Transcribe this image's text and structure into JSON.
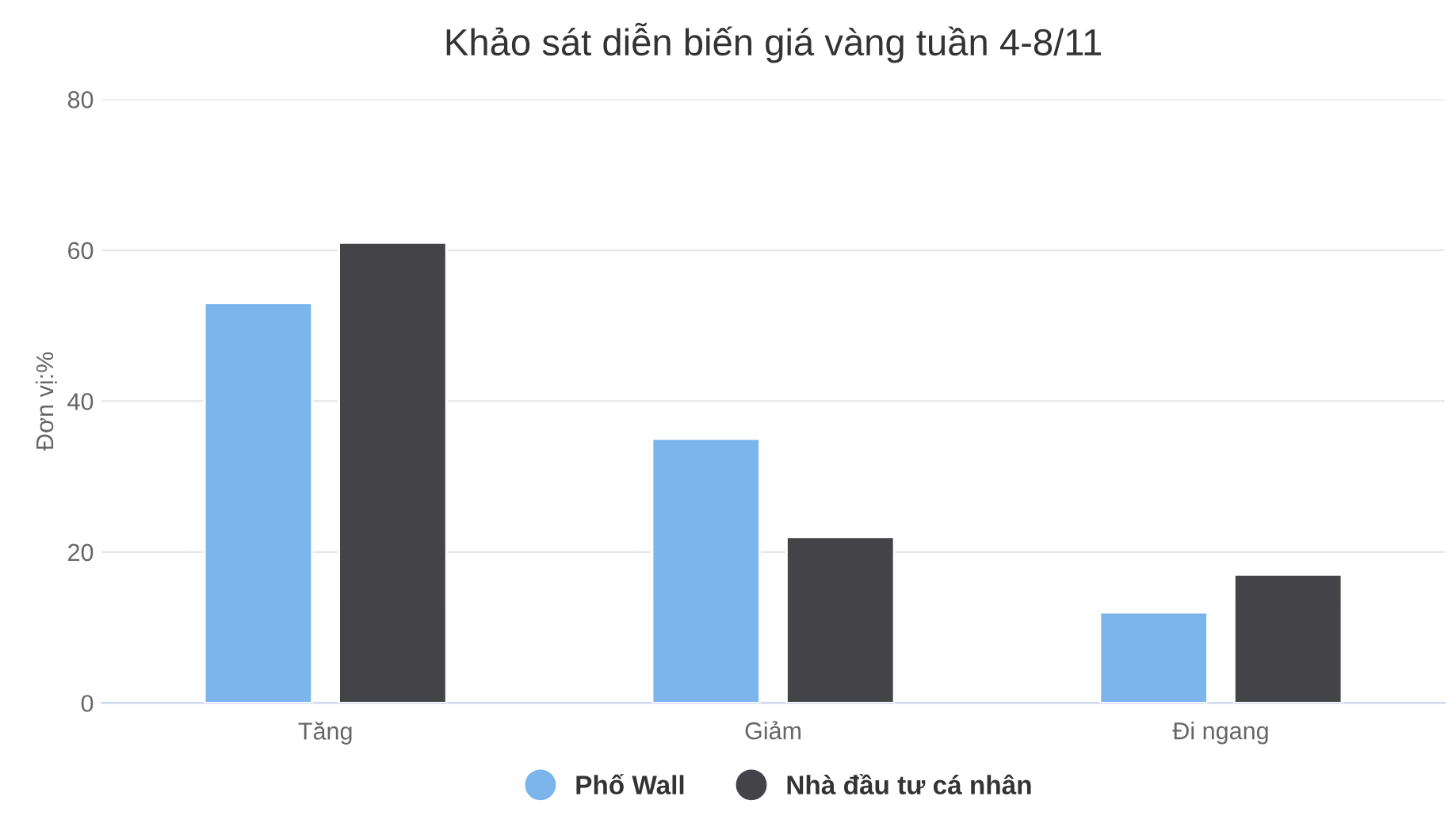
{
  "chart_data": {
    "type": "bar",
    "title": "Khảo sát diễn biến giá vàng tuần 4-8/11",
    "ylabel": "Đơn vị:%",
    "categories": [
      "Tăng",
      "Giảm",
      "Đi ngang"
    ],
    "series": [
      {
        "name": "Phố Wall",
        "color": "#7cb5ec",
        "values": [
          53,
          35,
          12
        ]
      },
      {
        "name": "Nhà đầu tư cá nhân",
        "color": "#434348",
        "values": [
          61,
          22,
          17
        ]
      }
    ],
    "ylim": [
      0,
      80
    ],
    "yticks": [
      0,
      20,
      40,
      60,
      80
    ],
    "grid": "y",
    "legend": "bottom"
  }
}
